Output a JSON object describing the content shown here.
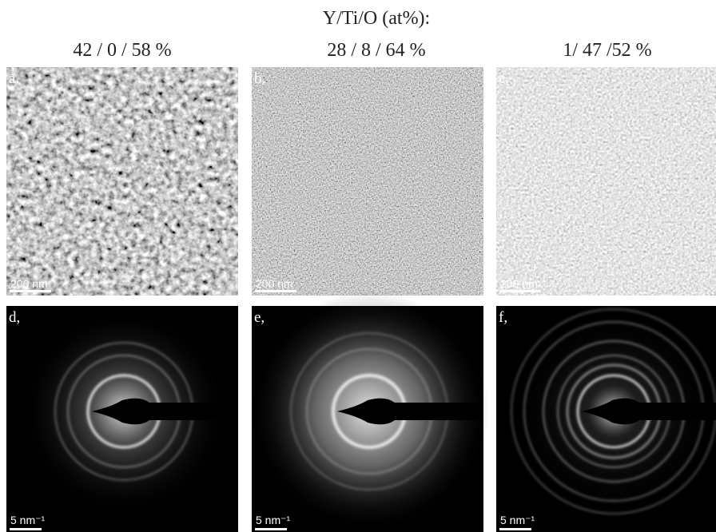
{
  "header": {
    "title": "Y/Ti/O (at%):",
    "columns": [
      "42 / 0 / 58 %",
      "28 / 8 / 64 %",
      "1/ 47 /52 %"
    ]
  },
  "panels": [
    {
      "label": "a.",
      "scale_bar": "200 nm"
    },
    {
      "label": "b,",
      "scale_bar": "200 nm"
    },
    {
      "label": "c,",
      "scale_bar": "200 nm"
    },
    {
      "label": "d,",
      "scale_bar": "5 nm⁻¹"
    },
    {
      "label": "e,",
      "scale_bar": "5 nm⁻¹"
    },
    {
      "label": "f,",
      "scale_bar": "5 nm⁻¹"
    }
  ]
}
